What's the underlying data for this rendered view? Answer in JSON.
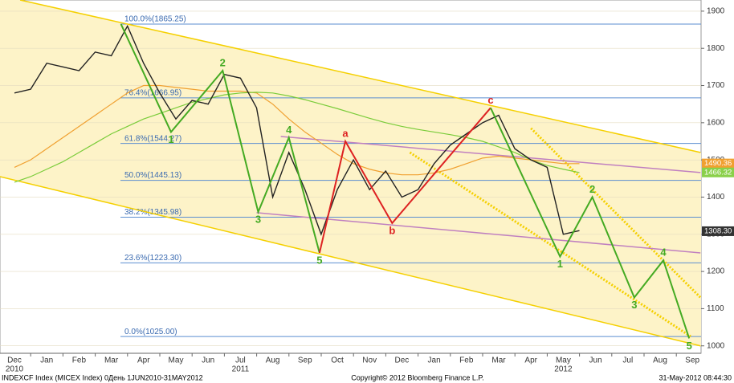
{
  "chart_data": {
    "type": "line",
    "categories": [
      "Dec",
      null,
      "Jan",
      null,
      "Feb",
      null,
      "Mar",
      null,
      "Apr",
      null,
      "May",
      null,
      "Jun",
      null,
      "Jul",
      null,
      "Aug",
      null,
      "Sep",
      null,
      "Oct",
      null,
      "Nov",
      null,
      "Dec",
      null,
      "Jan",
      null,
      "Feb",
      null,
      "Mar",
      null,
      "Apr",
      null,
      "May",
      null,
      "Jun",
      null,
      "Jul",
      null,
      "Aug",
      null,
      "Sep"
    ],
    "years": [
      "2010",
      null,
      null,
      null,
      null,
      null,
      null,
      null,
      null,
      null,
      null,
      null,
      null,
      null,
      "2011",
      null,
      null,
      null,
      null,
      null,
      null,
      null,
      null,
      null,
      null,
      null,
      null,
      null,
      null,
      null,
      null,
      null,
      null,
      null,
      "2012",
      null,
      null,
      null,
      null,
      null,
      null,
      null,
      null
    ],
    "series": [
      {
        "color": "#f0a030",
        "values": [
          1480,
          1500,
          1530,
          1560,
          1590,
          1620,
          1650,
          1680,
          1700,
          1700,
          1695,
          1690,
          1685,
          1685,
          1685,
          1680,
          1650,
          1610,
          1575,
          1545,
          1515,
          1490,
          1475,
          1465,
          1460,
          1460,
          1465,
          1475,
          1490,
          1505,
          1510,
          1505,
          1500,
          1495,
          1490,
          1490,
          null,
          null,
          null,
          null,
          null,
          null,
          null
        ]
      },
      {
        "color": "#7acc3a",
        "values": [
          1440,
          1455,
          1475,
          1495,
          1520,
          1545,
          1570,
          1590,
          1610,
          1625,
          1640,
          1655,
          1665,
          1675,
          1680,
          1682,
          1680,
          1672,
          1662,
          1650,
          1638,
          1625,
          1612,
          1600,
          1590,
          1582,
          1575,
          1568,
          1560,
          1550,
          1535,
          1520,
          1500,
          1485,
          1475,
          1466,
          null,
          null,
          null,
          null,
          null,
          null,
          null
        ]
      },
      {
        "color": "#222222",
        "values": [
          1680,
          1690,
          1760,
          1750,
          1740,
          1790,
          1780,
          1860,
          1760,
          1680,
          1610,
          1660,
          1650,
          1730,
          1720,
          1640,
          1400,
          1520,
          1420,
          1300,
          1420,
          1500,
          1420,
          1470,
          1400,
          1420,
          1490,
          1540,
          1570,
          1600,
          1620,
          1530,
          1500,
          1480,
          1300,
          1310,
          null,
          null,
          null,
          null,
          null,
          null,
          null
        ]
      }
    ],
    "ylim": [
      980,
      1930
    ],
    "yticks": [
      1000,
      1100,
      1200,
      1300,
      1400,
      1500,
      1600,
      1700,
      1800,
      1900
    ],
    "tags": [
      {
        "value": 1490.36,
        "label": "1490.36",
        "color": "#f0a030"
      },
      {
        "value": 1466.32,
        "label": "1466.32",
        "color": "#8ad04a"
      },
      {
        "value": 1308.3,
        "label": "1308.30",
        "color": "#333333"
      }
    ],
    "fib_levels": [
      {
        "value": 1865.25,
        "label": "100.0%(1865.25)"
      },
      {
        "value": 1666.95,
        "label": "76.4%(1666.95)"
      },
      {
        "value": 1544.27,
        "label": "61.8%(1544.27)"
      },
      {
        "value": 1445.13,
        "label": "50.0%(1445.13)"
      },
      {
        "value": 1345.98,
        "label": "38.2%(1345.98)"
      },
      {
        "value": 1223.3,
        "label": "23.6%(1223.30)"
      },
      {
        "value": 1025.0,
        "label": "0.0%(1025.00)"
      }
    ],
    "channel": {
      "fill": "#fdf3c8",
      "upper": {
        "x": [
          0.35,
          42.5
        ],
        "values": [
          1930,
          1520
        ]
      },
      "lower": {
        "x": [
          -0.9,
          42.5
        ],
        "values": [
          1455,
          1000
        ]
      }
    },
    "trendlines": [
      {
        "color": "#f5d000",
        "x": [
          0.35,
          42.5
        ],
        "values": [
          1930,
          1520
        ]
      },
      {
        "color": "#f5d000",
        "x": [
          -0.9,
          42.5
        ],
        "values": [
          1455,
          1000
        ]
      },
      {
        "color": "#f5d000",
        "dashed": true,
        "x": [
          24.5,
          41.9
        ],
        "values": [
          1520,
          1025
        ]
      },
      {
        "color": "#f5d000",
        "dashed": true,
        "x": [
          32,
          42.5
        ],
        "values": [
          1585,
          1130
        ]
      },
      {
        "color": "#c080c0",
        "x": [
          16.5,
          42.5
        ],
        "values": [
          1563,
          1466
        ]
      },
      {
        "color": "#c080c0",
        "x": [
          15,
          42.5
        ],
        "values": [
          1358,
          1250
        ]
      }
    ],
    "waves": [
      {
        "color": "#44aa22",
        "x": [
          6.6,
          9.7,
          12.9,
          15.1,
          17,
          18.9
        ],
        "values": [
          1865,
          1575,
          1740,
          1360,
          1560,
          1250
        ],
        "labels": [
          null,
          "1",
          "2",
          "3",
          "4",
          "5"
        ]
      },
      {
        "color": "#dd2222",
        "x": [
          18.9,
          20.5,
          23.4,
          29.5
        ],
        "values": [
          1250,
          1550,
          1330,
          1640
        ],
        "labels": [
          null,
          "a",
          "b",
          "c"
        ]
      },
      {
        "color": "#44aa22",
        "x": [
          29.5,
          33.8,
          35.8,
          38.4,
          40.2,
          41.8
        ],
        "values": [
          1640,
          1240,
          1400,
          1130,
          1230,
          1020
        ],
        "labels": [
          null,
          "1",
          "2",
          "3",
          "4",
          "5"
        ]
      }
    ]
  },
  "footer": {
    "left": "INDEXCF Index (MICEX Index) 0День 1JUN2010-31MAY2012",
    "center": "Copyright© 2012 Bloomberg Finance L.P.",
    "right": "31-May-2012 08:44:30"
  }
}
